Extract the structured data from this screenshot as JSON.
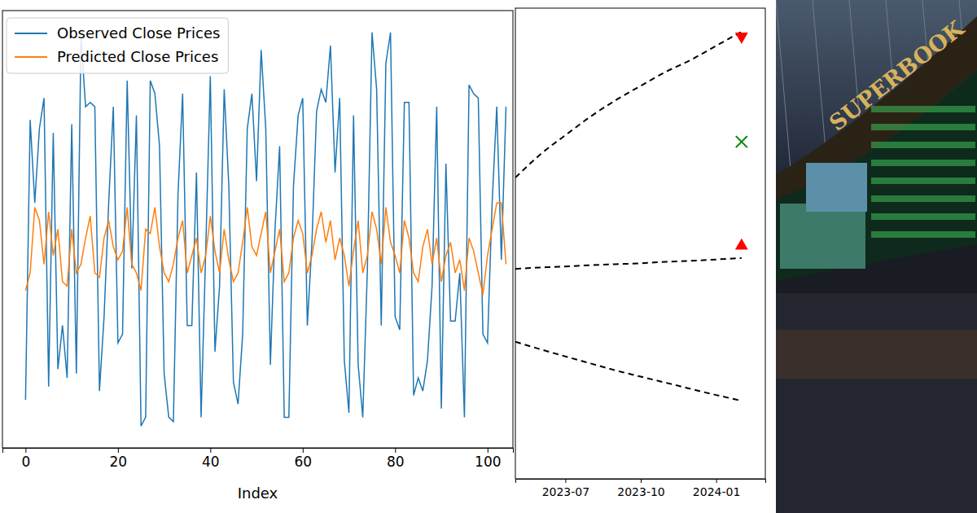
{
  "chart_data": [
    {
      "type": "line",
      "xlabel": "Index",
      "x": [
        0,
        1,
        2,
        3,
        4,
        5,
        6,
        7,
        8,
        9,
        10,
        11,
        12,
        13,
        14,
        15,
        16,
        17,
        18,
        19,
        20,
        21,
        22,
        23,
        24,
        25,
        26,
        27,
        28,
        29,
        30,
        31,
        32,
        33,
        34,
        35,
        36,
        37,
        38,
        39,
        40,
        41,
        42,
        43,
        44,
        45,
        46,
        47,
        48,
        49,
        50,
        51,
        52,
        53,
        54,
        55,
        56,
        57,
        58,
        59,
        60,
        61,
        62,
        63,
        64,
        65,
        66,
        67,
        68,
        69,
        70,
        71,
        72,
        73,
        74,
        75,
        76,
        77,
        78,
        79,
        80,
        81,
        82,
        83,
        84,
        85,
        86,
        87,
        88,
        89,
        90,
        91,
        92,
        93,
        94,
        95,
        96,
        97,
        98,
        99,
        100,
        101,
        102,
        103,
        104
      ],
      "series": [
        {
          "name": "Observed Close Prices",
          "color": "#1f77b4",
          "values": [
            11,
            75,
            56,
            73,
            80,
            14,
            72,
            18,
            28,
            16,
            74,
            17,
            94,
            78,
            79,
            78,
            13,
            30,
            56,
            78,
            24,
            26,
            84,
            41,
            76,
            5,
            7,
            84,
            81,
            69,
            17,
            7,
            6,
            58,
            81,
            28,
            28,
            63,
            7,
            45,
            85,
            22,
            37,
            82,
            60,
            15,
            10,
            26,
            73,
            81,
            61,
            91,
            73,
            19,
            50,
            69,
            7,
            7,
            60,
            76,
            80,
            28,
            47,
            77,
            82,
            79,
            92,
            63,
            80,
            20,
            8,
            76,
            19,
            7,
            41,
            95,
            82,
            28,
            88,
            95,
            30,
            27,
            79,
            79,
            12,
            16,
            13,
            20,
            37,
            78,
            9,
            65,
            29,
            29,
            40,
            7,
            83,
            81,
            80,
            26,
            24,
            56,
            78,
            43,
            78
          ]
        },
        {
          "name": "Predicted Close Prices",
          "color": "#ff7f0e",
          "values": [
            36,
            40,
            55,
            52,
            42,
            54,
            44,
            50,
            38,
            37,
            50,
            40,
            42,
            48,
            53,
            40,
            39,
            48,
            52,
            46,
            43,
            45,
            55,
            42,
            40,
            36,
            50,
            49,
            55,
            46,
            40,
            38,
            42,
            48,
            52,
            40,
            44,
            48,
            40,
            44,
            53,
            45,
            40,
            50,
            43,
            38,
            40,
            47,
            55,
            46,
            44,
            49,
            54,
            40,
            45,
            50,
            38,
            40,
            48,
            52,
            49,
            40,
            44,
            50,
            54,
            47,
            52,
            43,
            48,
            44,
            37,
            45,
            52,
            40,
            44,
            54,
            50,
            42,
            55,
            47,
            44,
            40,
            52,
            48,
            40,
            38,
            46,
            50,
            42,
            48,
            38,
            44,
            47,
            40,
            43,
            36,
            48,
            45,
            40,
            35,
            44,
            50,
            56,
            56,
            42
          ]
        }
      ],
      "xlim": [
        -5,
        105.5
      ],
      "xticks": [
        0,
        20,
        40,
        60,
        80,
        100
      ],
      "ylim": [
        0,
        100
      ],
      "tick_labels": "x",
      "legend": "upper left"
    },
    {
      "type": "line",
      "x": [
        "2023-05",
        "2023-06",
        "2023-07",
        "2023-08",
        "2023-09",
        "2023-10",
        "2023-11",
        "2023-12",
        "2024-01",
        "2024-02"
      ],
      "series": [
        {
          "color": "#000000",
          "line_style": "dashed",
          "values": [
            64,
            69,
            73,
            77,
            80.5,
            83.5,
            86.5,
            89,
            92,
            95
          ]
        },
        {
          "color": "#000000",
          "line_style": "dashed",
          "values": [
            44.6,
            44.9,
            45.1,
            45.4,
            45.6,
            45.8,
            46.1,
            46.3,
            46.6,
            46.9
          ]
        },
        {
          "color": "#000000",
          "line_style": "dashed",
          "values": [
            29.1,
            27.5,
            26,
            24.5,
            23,
            21.7,
            20.4,
            19.1,
            17.8,
            16.6
          ]
        },
        {
          "type": "scatter",
          "x": [
            "2024-02"
          ],
          "values": [
            94
          ],
          "color": "#ff0000",
          "marker": "triangle-down"
        },
        {
          "type": "scatter",
          "x": [
            "2024-02"
          ],
          "values": [
            71.6
          ],
          "color": "#008000",
          "marker": "x"
        },
        {
          "type": "scatter",
          "x": [
            "2024-02"
          ],
          "values": [
            49.5
          ],
          "color": "#ff0000",
          "marker": "triangle-up"
        }
      ],
      "xlim": [
        "2023-05",
        "2024-03"
      ],
      "xticks": [
        "2023-07",
        "2023-10",
        "2024-01"
      ],
      "ylim": [
        0,
        100
      ],
      "tick_labels": "x"
    }
  ],
  "image": {
    "signage": "SUPERBOOK"
  }
}
